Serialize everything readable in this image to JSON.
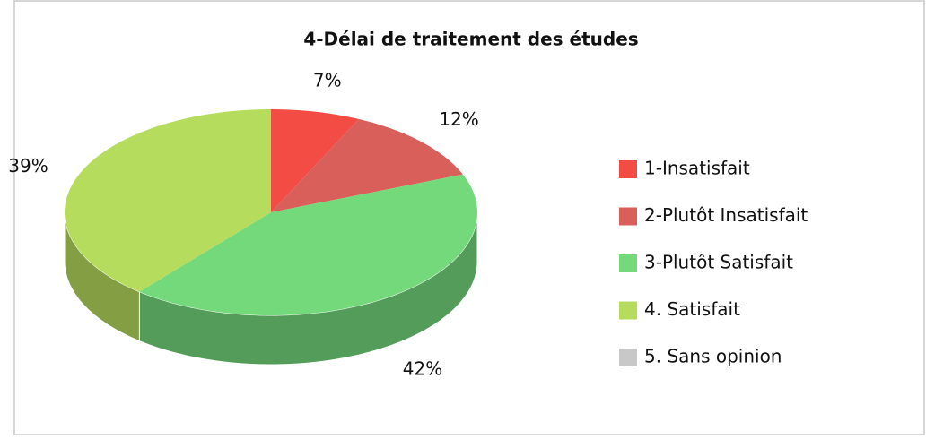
{
  "chart_data": {
    "type": "pie",
    "title": "4-Délai de traitement des études",
    "categories": [
      "1-Insatisfait",
      "2-Plutôt Insatisfait",
      "3-Plutôt Satisfait",
      "4. Satisfait",
      "5. Sans opinion"
    ],
    "values": [
      7,
      12,
      42,
      39,
      0
    ],
    "value_labels": [
      "7%",
      "12%",
      "42%",
      "39%",
      null
    ],
    "colors": [
      "#f24c45",
      "#d9605a",
      "#73d97b",
      "#b6dc5d",
      "#c8c8c8"
    ],
    "legend": "right"
  }
}
